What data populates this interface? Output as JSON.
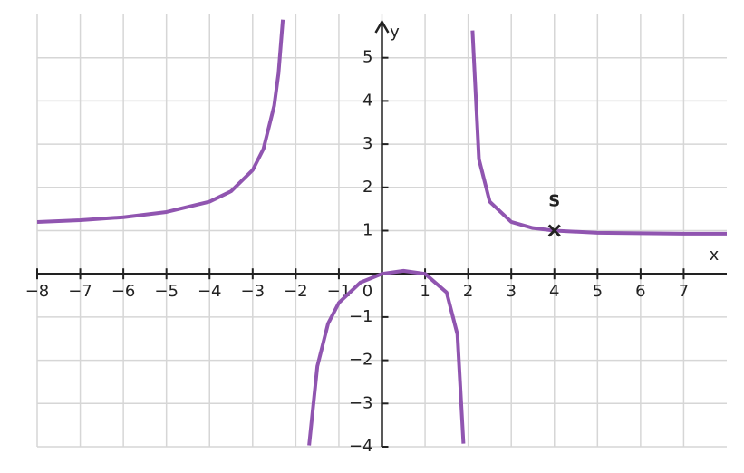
{
  "chart_data": {
    "type": "line",
    "x_label": "x",
    "y_label": "y",
    "xlim": [
      -8,
      8
    ],
    "ylim": [
      -4,
      6
    ],
    "grid": true,
    "grid_color": "#d6d6d6",
    "xticks": [
      {
        "value": -8,
        "label": "−8"
      },
      {
        "value": -7,
        "label": "−7"
      },
      {
        "value": -6,
        "label": "−6"
      },
      {
        "value": -5,
        "label": "−5"
      },
      {
        "value": -4,
        "label": "−4"
      },
      {
        "value": -3,
        "label": "−3"
      },
      {
        "value": -2,
        "label": "−2"
      },
      {
        "value": -1,
        "label": "−1"
      },
      0,
      1,
      2,
      3,
      4,
      5,
      6,
      7
    ],
    "yticks": [
      {
        "value": -4,
        "label": "−4"
      },
      {
        "value": -3,
        "label": "−3"
      },
      {
        "value": -2,
        "label": "−2"
      },
      {
        "value": -1,
        "label": "−1"
      },
      1,
      2,
      3,
      4,
      5
    ],
    "x": [
      -8,
      -7,
      -6,
      -5,
      -4,
      -3.5,
      -3,
      -2.75,
      -2.5,
      -2.4,
      -2.3,
      -2,
      -1.69,
      -1.5,
      -1.25,
      -1,
      -0.5,
      0,
      0.5,
      1,
      1.5,
      1.75,
      1.89,
      2,
      2.1,
      2.25,
      2.5,
      3,
      3.5,
      4,
      5,
      6,
      7,
      8
    ],
    "series": [
      {
        "color": "#9055b0",
        "values": [
          1.2,
          1.24,
          1.31,
          1.43,
          1.67,
          1.91,
          2.4,
          2.89,
          3.89,
          4.64,
          5.88,
          null,
          -3.97,
          -2.14,
          -1.15,
          -0.67,
          -0.2,
          0,
          0.07,
          0,
          -0.43,
          -1.4,
          -3.93,
          null,
          5.63,
          2.65,
          1.67,
          1.2,
          1.06,
          1,
          0.95,
          0.94,
          0.93,
          0.93
        ]
      }
    ],
    "annotations": [
      {
        "label": "S",
        "x": 4,
        "y": 1
      }
    ]
  }
}
